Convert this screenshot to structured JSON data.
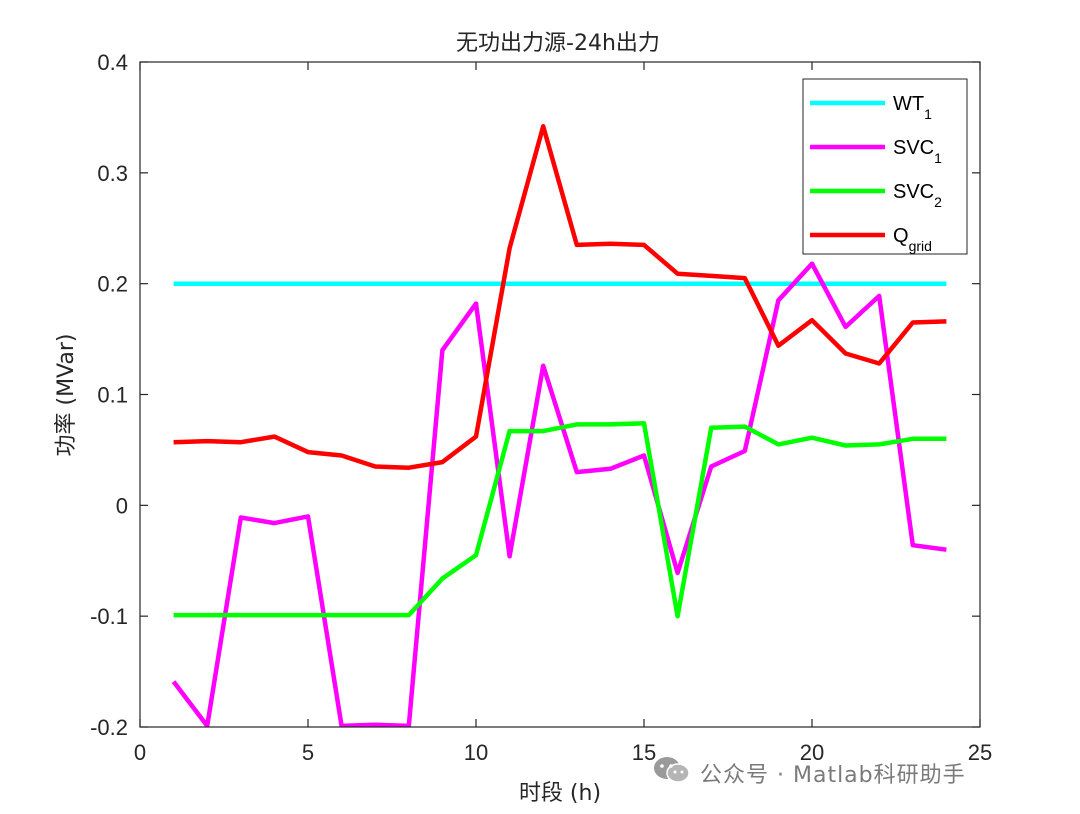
{
  "chart_data": {
    "type": "line",
    "title": "无功出力源-24h出力",
    "xlabel": "时段 (h)",
    "ylabel": "功率 (MVar)",
    "xlim": [
      0,
      25
    ],
    "ylim": [
      -0.2,
      0.4
    ],
    "xticks": [
      0,
      5,
      10,
      15,
      20,
      25
    ],
    "yticks": [
      -0.2,
      -0.1,
      0,
      0.1,
      0.2,
      0.3,
      0.4
    ],
    "x": [
      1,
      2,
      3,
      4,
      5,
      6,
      7,
      8,
      9,
      10,
      11,
      12,
      13,
      14,
      15,
      16,
      17,
      18,
      19,
      20,
      21,
      22,
      23,
      24
    ],
    "legend_position": "top-right",
    "grid": false,
    "series": [
      {
        "name": "WT",
        "sub": "1",
        "color": "#00FFFF",
        "values": [
          0.2,
          0.2,
          0.2,
          0.2,
          0.2,
          0.2,
          0.2,
          0.2,
          0.2,
          0.2,
          0.2,
          0.2,
          0.2,
          0.2,
          0.2,
          0.2,
          0.2,
          0.2,
          0.2,
          0.2,
          0.2,
          0.2,
          0.2,
          0.2
        ]
      },
      {
        "name": "SVC",
        "sub": "1",
        "color": "#FF00FF",
        "values": [
          -0.159,
          -0.199,
          -0.011,
          -0.016,
          -0.01,
          -0.199,
          -0.198,
          -0.199,
          0.14,
          0.182,
          -0.046,
          0.126,
          0.03,
          0.033,
          0.045,
          -0.061,
          0.035,
          0.049,
          0.185,
          0.218,
          0.161,
          0.189,
          -0.036,
          -0.04
        ]
      },
      {
        "name": "SVC",
        "sub": "2",
        "color": "#00FF00",
        "values": [
          -0.099,
          -0.099,
          -0.099,
          -0.099,
          -0.099,
          -0.099,
          -0.099,
          -0.099,
          -0.066,
          -0.045,
          0.067,
          0.067,
          0.073,
          0.073,
          0.074,
          -0.1,
          0.07,
          0.071,
          0.055,
          0.061,
          0.054,
          0.055,
          0.06,
          0.06
        ]
      },
      {
        "name": "Q",
        "sub": "grid",
        "color": "#FF0000",
        "values": [
          0.057,
          0.058,
          0.057,
          0.062,
          0.048,
          0.045,
          0.035,
          0.034,
          0.039,
          0.062,
          0.232,
          0.342,
          0.235,
          0.236,
          0.235,
          0.209,
          0.207,
          0.205,
          0.144,
          0.167,
          0.137,
          0.128,
          0.165,
          0.166
        ]
      }
    ]
  },
  "watermark": {
    "text": "公众号 · Matlab科研助手",
    "icon": "wechat-icon"
  }
}
